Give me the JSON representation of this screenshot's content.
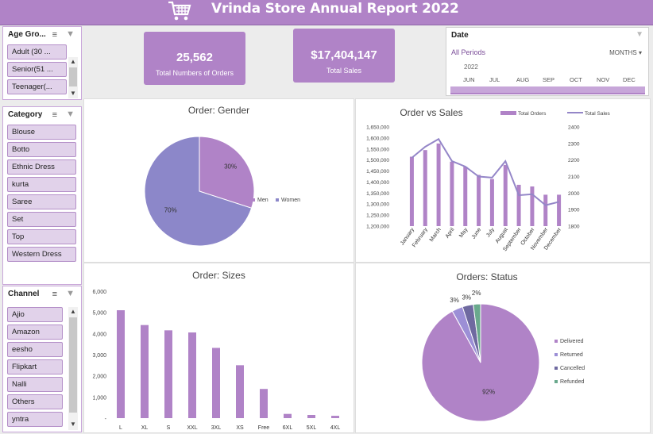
{
  "header": {
    "title": "Vrinda Store  Annual Report  2022",
    "icon": "shopping-cart-icon",
    "color": "#b083c7"
  },
  "slicers": {
    "age_group": {
      "title": "Age Gro...",
      "items": [
        "Adult (30 ...",
        "Senior(51 ...",
        "Teenager(..."
      ]
    },
    "category": {
      "title": "Category",
      "items": [
        "Blouse",
        "Botto",
        "Ethnic Dress",
        "kurta",
        "Saree",
        "Set",
        "Top",
        "Western Dress"
      ]
    },
    "channel": {
      "title": "Channel",
      "items": [
        "Ajio",
        "Amazon",
        "eesho",
        "Flipkart",
        "Nalli",
        "Others",
        "yntra"
      ]
    }
  },
  "kpis": {
    "orders": {
      "value": "25,562",
      "label": "Total Numbers of Orders"
    },
    "sales": {
      "value": "$17,404,147",
      "label": "Total Sales"
    }
  },
  "timeline": {
    "title": "Date",
    "periods": "All Periods",
    "level": "MONTHS",
    "year": "2022",
    "months": [
      "JUN",
      "JUL",
      "AUG",
      "SEP",
      "OCT",
      "NOV",
      "DEC"
    ]
  },
  "chart_data": [
    {
      "type": "pie",
      "title": "Order: Gender",
      "categories": [
        "Men",
        "Women"
      ],
      "values": [
        30,
        70
      ],
      "labels": [
        "30%",
        "70%"
      ],
      "colors": [
        "#b083c7",
        "#8c87c9"
      ],
      "legend": "right"
    },
    {
      "type": "bar",
      "title": "Order vs Sales",
      "categories": [
        "January",
        "February",
        "March",
        "April",
        "May",
        "June",
        "July",
        "August",
        "September",
        "October",
        "November",
        "December"
      ],
      "series": [
        {
          "name": "Total Orders",
          "type": "bar",
          "axis": "right",
          "values": [
            2220,
            2260,
            2300,
            2190,
            2160,
            2110,
            2085,
            2170,
            2050,
            2040,
            1990,
            1990
          ]
        },
        {
          "name": "Total Sales",
          "type": "line",
          "axis": "left",
          "values": [
            1510000,
            1560000,
            1595000,
            1495000,
            1470000,
            1425000,
            1420000,
            1495000,
            1340000,
            1345000,
            1295000,
            1310000
          ]
        }
      ],
      "y_left_ticks": [
        "1,650,000",
        "1,600,000",
        "1,550,000",
        "1,500,000",
        "1,450,000",
        "1,400,000",
        "1,350,000",
        "1,300,000",
        "1,250,000",
        "1,200,000"
      ],
      "y_left_lim": [
        1200000,
        1650000
      ],
      "y_right_ticks": [
        "2400",
        "2300",
        "2200",
        "2100",
        "2000",
        "1900",
        "1800"
      ],
      "y_right_lim": [
        1800,
        2400
      ],
      "legend": "top-right",
      "colors": {
        "bars": "#b083c7",
        "line": "#9486c8"
      }
    },
    {
      "type": "bar",
      "title": "Order: Sizes",
      "categories": [
        "L",
        "XL",
        "S",
        "XXL",
        "3XL",
        "XS",
        "Free",
        "6XL",
        "5XL",
        "4XL"
      ],
      "values": [
        5100,
        4400,
        4150,
        4050,
        3320,
        2500,
        1380,
        200,
        150,
        110
      ],
      "y_ticks": [
        "6,000",
        "5,000",
        "4,000",
        "3,000",
        "2,000",
        "1,000",
        "-"
      ],
      "ylim": [
        0,
        6000
      ],
      "color": "#b083c7"
    },
    {
      "type": "pie",
      "title": "Orders: Status",
      "categories": [
        "Delivered",
        "Returned",
        "Cancelled",
        "Refunded"
      ],
      "values": [
        92,
        3,
        3,
        2
      ],
      "labels": [
        "92%",
        "3%",
        "3%",
        "2%"
      ],
      "colors": [
        "#b083c7",
        "#9c8fd6",
        "#6f6aa0",
        "#6aa98d"
      ],
      "legend": "right"
    }
  ]
}
